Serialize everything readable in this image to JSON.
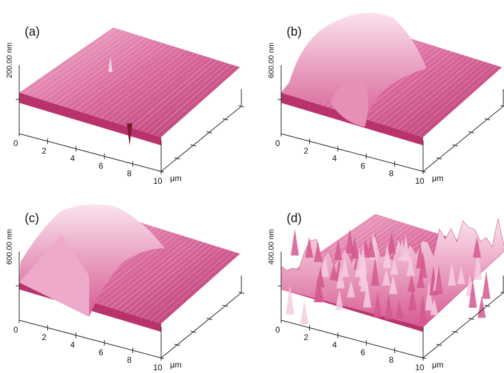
{
  "panels": [
    {
      "label": "(a)",
      "z_label": "200.00 nm",
      "x_ticks": [
        "0",
        "2",
        "4",
        "6",
        "8",
        "10"
      ],
      "unit": "μm"
    },
    {
      "label": "(b)",
      "z_label": "600.00 nm",
      "x_ticks": [
        "0",
        "2",
        "4",
        "6",
        "8",
        "10"
      ],
      "unit": "μm"
    },
    {
      "label": "(c)",
      "z_label": "600.00 nm",
      "x_ticks": [
        "0",
        "2",
        "4",
        "6",
        "8",
        "10"
      ],
      "unit": "μm"
    },
    {
      "label": "(d)",
      "z_label": "400.00 nm",
      "x_ticks": [
        "0",
        "2",
        "4",
        "6",
        "8",
        "10"
      ],
      "unit": "μm"
    }
  ]
}
